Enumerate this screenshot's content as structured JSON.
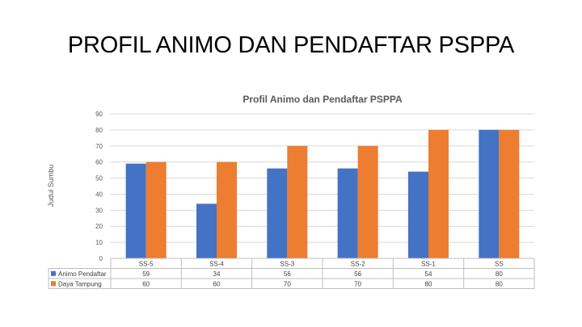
{
  "slide": {
    "title": "PROFIL ANIMO DAN PENDAFTAR PSPPA"
  },
  "chart_data": {
    "type": "bar",
    "title": "Profil Animo dan Pendaftar PSPPA",
    "xlabel": "",
    "ylabel": "Judul Sumbu",
    "ylim": [
      0,
      90
    ],
    "yticks": [
      0,
      10,
      20,
      30,
      40,
      50,
      60,
      70,
      80,
      90
    ],
    "grid": true,
    "legend": "data-table",
    "categories": [
      "SS-5",
      "SS-4",
      "SS-3",
      "SS-2",
      "SS-1",
      "SS"
    ],
    "series": [
      {
        "name": "Animo Pendaftar",
        "color": "#4472C4",
        "values": [
          59,
          34,
          56,
          56,
          54,
          80
        ]
      },
      {
        "name": "Daya Tampung",
        "color": "#ED7D31",
        "values": [
          60,
          60,
          70,
          70,
          80,
          80
        ]
      }
    ]
  }
}
